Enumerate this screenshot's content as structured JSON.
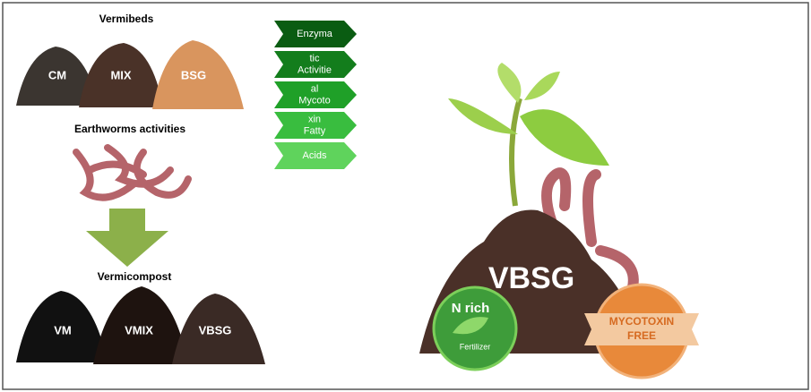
{
  "left": {
    "vermibeds_title": "Vermibeds",
    "vermibeds": [
      "CM",
      "MIX",
      "BSG"
    ],
    "process": "Earthworms activities",
    "vermicompost_title": "Vermicompost",
    "vermicompost": [
      "VM",
      "VMIX",
      "VBSG"
    ]
  },
  "arrows": [
    [
      "Enzyma"
    ],
    [
      "tic",
      "Activitie"
    ],
    [
      "al",
      "Mycoto"
    ],
    [
      "xin",
      "Fatty"
    ],
    [
      "Acids"
    ]
  ],
  "right": {
    "product": "VBSG",
    "badge1": [
      "N rich",
      "Fertilizer"
    ],
    "badge2": [
      "MYCOTOXIN",
      "FREE"
    ]
  }
}
